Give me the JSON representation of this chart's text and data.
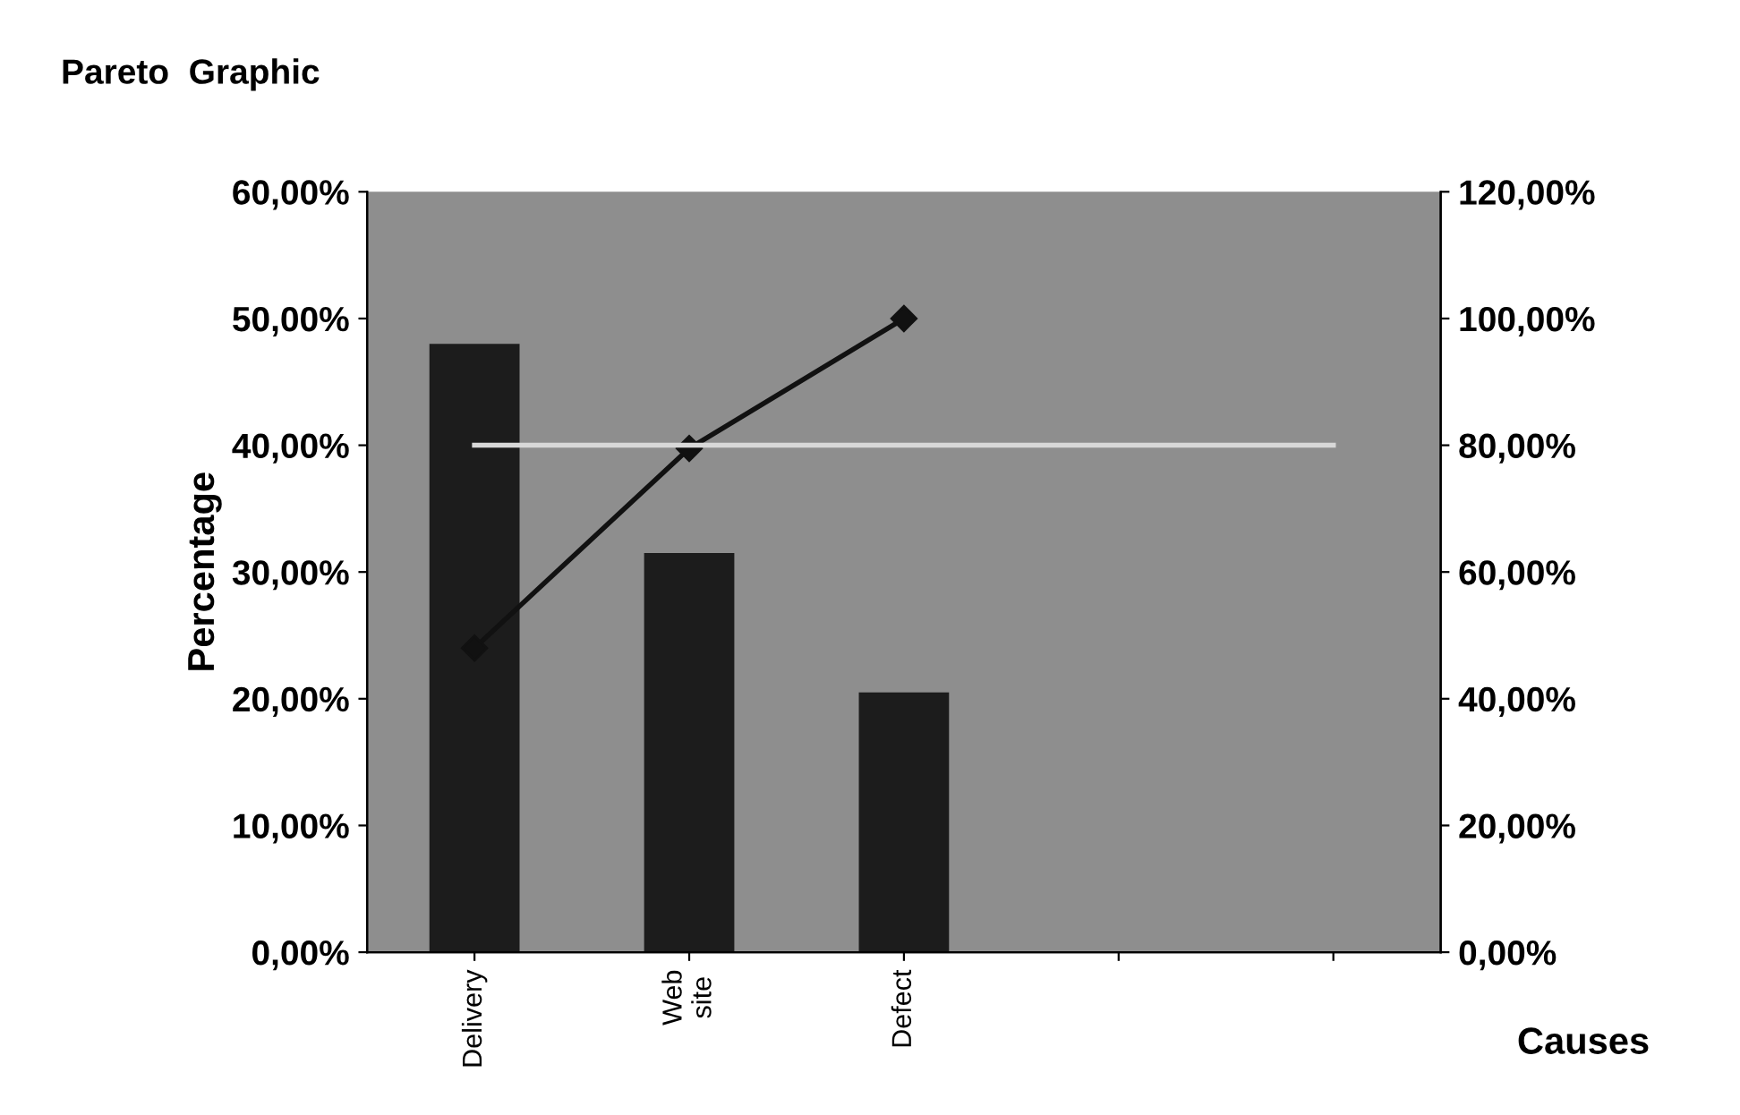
{
  "chart_data": {
    "type": "bar",
    "title": "Pareto  Graphic",
    "xlabel": "Causes",
    "ylabel": "Percentage",
    "categories": [
      "Delivery",
      "Web\nsite",
      "Defect",
      null,
      null
    ],
    "series": [
      {
        "color": "#1c1c1c",
        "values": [
          48,
          31.5,
          20.5,
          null,
          null
        ]
      },
      {
        "type": "line",
        "axis": "y2",
        "color": "#111111",
        "marker": "diamond",
        "values": [
          48,
          79.5,
          100,
          null,
          null
        ]
      },
      {
        "type": "line",
        "axis": "y2",
        "color": "#d8d8d8",
        "marker": "none",
        "values": [
          80,
          80,
          80,
          80,
          80
        ]
      }
    ],
    "ylim": [
      0,
      60
    ],
    "yticks": [
      {
        "value": 0,
        "label": "0,00%"
      },
      {
        "value": 10,
        "label": "10,00%"
      },
      {
        "value": 20,
        "label": "20,00%"
      },
      {
        "value": 30,
        "label": "30,00%"
      },
      {
        "value": 40,
        "label": "40,00%"
      },
      {
        "value": 50,
        "label": "50,00%"
      },
      {
        "value": 60,
        "label": "60,00%"
      }
    ],
    "y2lim": [
      0,
      120
    ],
    "y2ticks": [
      {
        "value": 0,
        "label": "0,00%"
      },
      {
        "value": 20,
        "label": "20,00%"
      },
      {
        "value": 40,
        "label": "40,00%"
      },
      {
        "value": 60,
        "label": "60,00%"
      },
      {
        "value": 80,
        "label": "80,00%"
      },
      {
        "value": 100,
        "label": "100,00%"
      },
      {
        "value": 120,
        "label": "120,00%"
      }
    ],
    "grid": false,
    "legend": false
  }
}
